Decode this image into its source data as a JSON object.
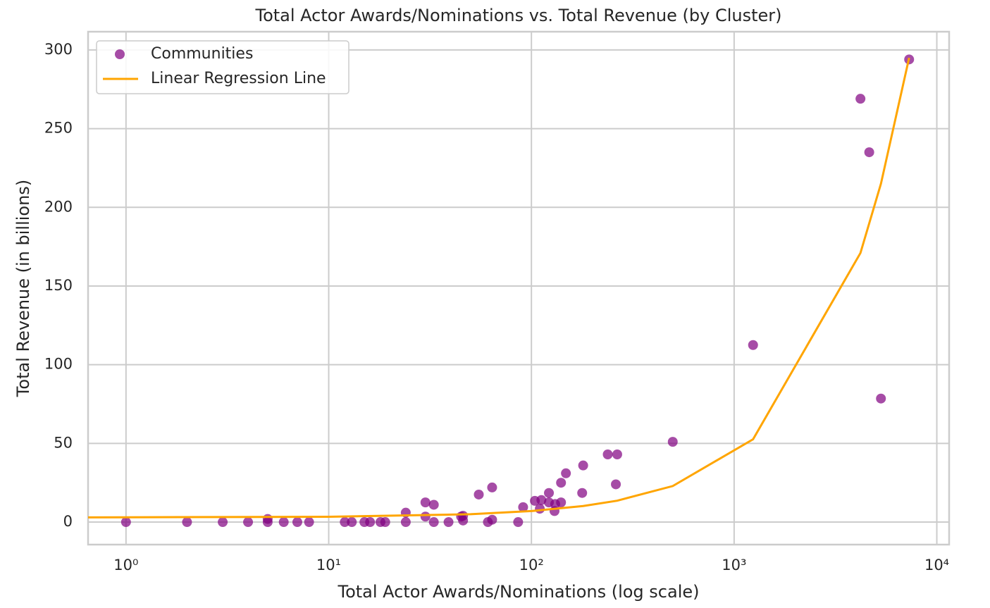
{
  "chart_data": {
    "type": "scatter",
    "title": "Total Actor Awards/Nominations vs. Total Revenue (by Cluster)",
    "xlabel": "Total Actor Awards/Nominations (log scale)",
    "ylabel": "Total Revenue (in billions)",
    "xscale": "log",
    "grid": true,
    "legend": "upper left",
    "xlim": [
      0.65,
      11500
    ],
    "ylim": [
      -14.3,
      311.6
    ],
    "xticks": [
      {
        "value": 1,
        "label": "10⁰"
      },
      {
        "value": 10,
        "label": "10¹"
      },
      {
        "value": 100,
        "label": "10²"
      },
      {
        "value": 1000,
        "label": "10³"
      },
      {
        "value": 10000,
        "label": "10⁴"
      }
    ],
    "yticks": [
      0,
      50,
      100,
      150,
      200,
      250,
      300
    ],
    "series": [
      {
        "name": "Communities",
        "type": "scatter",
        "color": "#800080",
        "x": [
          1,
          2,
          3,
          4,
          5,
          5,
          6,
          7,
          8,
          12,
          13,
          15,
          16,
          18,
          19,
          24,
          24,
          30,
          30,
          33,
          33,
          39,
          45,
          46,
          46,
          55,
          61,
          64,
          64,
          86,
          91,
          104,
          110,
          112,
          122,
          122,
          130,
          131,
          140,
          140,
          148,
          178,
          180,
          238,
          261,
          265,
          498,
          1240,
          4200,
          4640,
          5300,
          7300
        ],
        "values": [
          0,
          0,
          0,
          0,
          0,
          2,
          0,
          0,
          0,
          0,
          0,
          0,
          0,
          0,
          0,
          6,
          0,
          12.5,
          3.5,
          11,
          0,
          0,
          3.5,
          1,
          4,
          17.5,
          0,
          1.5,
          22,
          0,
          9.5,
          13.5,
          8.5,
          14,
          18.5,
          12.5,
          7,
          11.5,
          25,
          12.5,
          31,
          18.5,
          36,
          43,
          24,
          43,
          51,
          112.5,
          269,
          235,
          78.5,
          294
        ]
      },
      {
        "name": "Linear Regression Line",
        "type": "line",
        "color": "#ffa500",
        "x": [
          0.65,
          1,
          10,
          50,
          100,
          180,
          265,
          498,
          1240,
          4200,
          5300,
          7300
        ],
        "values": [
          3,
          3.04,
          3.4,
          5,
          7,
          10.2,
          13.6,
          22.9,
          52.6,
          171,
          215,
          295
        ]
      }
    ]
  }
}
